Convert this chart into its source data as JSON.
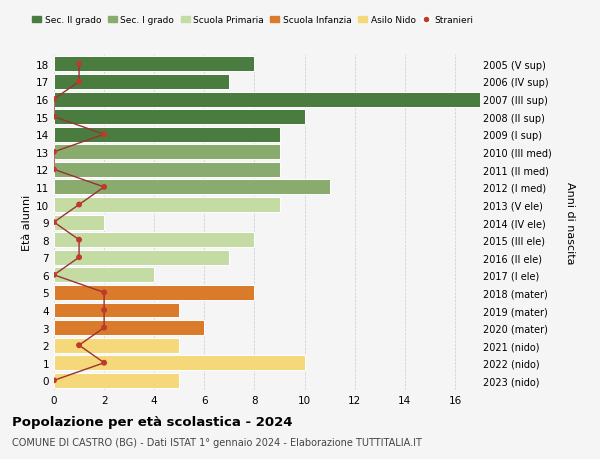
{
  "ages": [
    18,
    17,
    16,
    15,
    14,
    13,
    12,
    11,
    10,
    9,
    8,
    7,
    6,
    5,
    4,
    3,
    2,
    1,
    0
  ],
  "right_labels": [
    "2005 (V sup)",
    "2006 (IV sup)",
    "2007 (III sup)",
    "2008 (II sup)",
    "2009 (I sup)",
    "2010 (III med)",
    "2011 (II med)",
    "2012 (I med)",
    "2013 (V ele)",
    "2014 (IV ele)",
    "2015 (III ele)",
    "2016 (II ele)",
    "2017 (I ele)",
    "2018 (mater)",
    "2019 (mater)",
    "2020 (mater)",
    "2021 (nido)",
    "2022 (nido)",
    "2023 (nido)"
  ],
  "bar_values": [
    8,
    7,
    17,
    10,
    9,
    9,
    9,
    11,
    9,
    2,
    8,
    7,
    4,
    8,
    5,
    6,
    5,
    10,
    5
  ],
  "bar_colors": [
    "#4a7c3f",
    "#4a7c3f",
    "#4a7c3f",
    "#4a7c3f",
    "#4a7c3f",
    "#8aab6e",
    "#8aab6e",
    "#8aab6e",
    "#c5dba4",
    "#c5dba4",
    "#c5dba4",
    "#c5dba4",
    "#c5dba4",
    "#d97b2b",
    "#d97b2b",
    "#d97b2b",
    "#f5d87a",
    "#f5d87a",
    "#f5d87a"
  ],
  "stranieri_values": [
    1,
    1,
    0,
    0,
    2,
    0,
    0,
    2,
    1,
    0,
    1,
    1,
    0,
    2,
    2,
    2,
    1,
    2,
    0
  ],
  "legend_labels": [
    "Sec. II grado",
    "Sec. I grado",
    "Scuola Primaria",
    "Scuola Infanzia",
    "Asilo Nido",
    "Stranieri"
  ],
  "legend_colors": [
    "#4a7c3f",
    "#8aab6e",
    "#c5dba4",
    "#d97b2b",
    "#f5d87a",
    "#c0392b"
  ],
  "title": "Popolazione per età scolastica - 2024",
  "subtitle": "COMUNE DI CASTRO (BG) - Dati ISTAT 1° gennaio 2024 - Elaborazione TUTTITALIA.IT",
  "ylabel_left": "Età alunni",
  "ylabel_right": "Anni di nascita",
  "xlim": [
    0,
    17
  ],
  "xticks": [
    0,
    2,
    4,
    6,
    8,
    10,
    12,
    14,
    16
  ],
  "bg_color": "#f5f5f5",
  "bar_edge_color": "#ffffff",
  "stranieri_color": "#c0392b",
  "stranieri_line_color": "#993333",
  "grid_color": "#cccccc"
}
